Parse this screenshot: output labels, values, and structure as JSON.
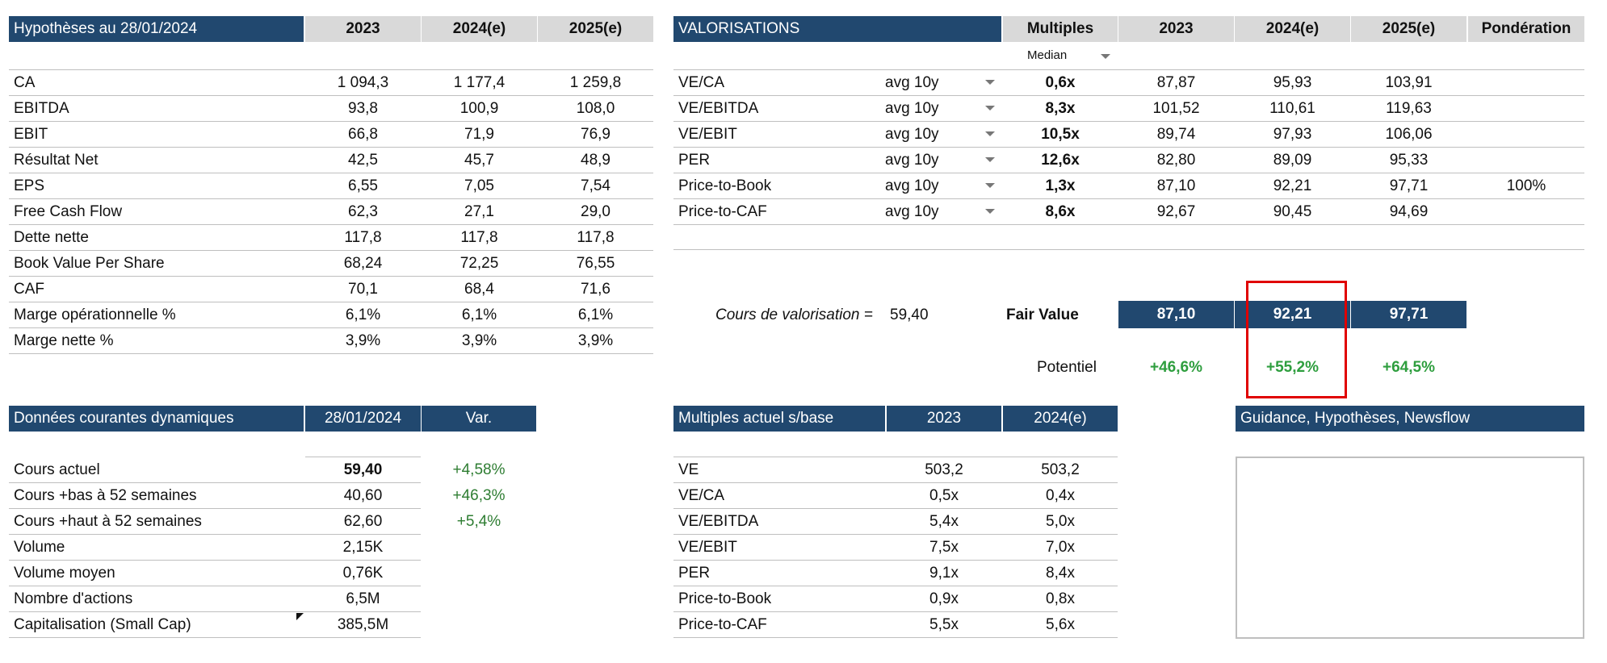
{
  "hypotheses": {
    "title": "Hypothèses au 28/01/2024",
    "columns": [
      "2023",
      "2024(e)",
      "2025(e)"
    ],
    "rows": [
      {
        "label": "CA",
        "v": [
          "1 094,3",
          "1 177,4",
          "1 259,8"
        ]
      },
      {
        "label": "EBITDA",
        "v": [
          "93,8",
          "100,9",
          "108,0"
        ]
      },
      {
        "label": "EBIT",
        "v": [
          "66,8",
          "71,9",
          "76,9"
        ]
      },
      {
        "label": "Résultat Net",
        "v": [
          "42,5",
          "45,7",
          "48,9"
        ]
      },
      {
        "label": "EPS",
        "v": [
          "6,55",
          "7,05",
          "7,54"
        ]
      },
      {
        "label": "Free Cash Flow",
        "v": [
          "62,3",
          "27,1",
          "29,0"
        ]
      },
      {
        "label": "Dette nette",
        "v": [
          "117,8",
          "117,8",
          "117,8"
        ]
      },
      {
        "label": "Book Value Per Share",
        "v": [
          "68,24",
          "72,25",
          "76,55"
        ]
      },
      {
        "label": "CAF",
        "v": [
          "70,1",
          "68,4",
          "71,6"
        ]
      },
      {
        "label": "Marge opérationnelle %",
        "v": [
          "6,1%",
          "6,1%",
          "6,1%"
        ]
      },
      {
        "label": "Marge nette %",
        "v": [
          "3,9%",
          "3,9%",
          "3,9%"
        ]
      }
    ]
  },
  "valorisations": {
    "title": "VALORISATIONS",
    "multiples_header": "Multiples",
    "median_label": "Median",
    "columns": [
      "2023",
      "2024(e)",
      "2025(e)"
    ],
    "ponderation_header": "Pondération",
    "rows": [
      {
        "label": "VE/CA",
        "period": "avg 10y",
        "multiple": "0,6x",
        "v": [
          "87,87",
          "95,93",
          "103,91"
        ],
        "ponderation": ""
      },
      {
        "label": "VE/EBITDA",
        "period": "avg 10y",
        "multiple": "8,3x",
        "v": [
          "101,52",
          "110,61",
          "119,63"
        ],
        "ponderation": ""
      },
      {
        "label": "VE/EBIT",
        "period": "avg 10y",
        "multiple": "10,5x",
        "v": [
          "89,74",
          "97,93",
          "106,06"
        ],
        "ponderation": ""
      },
      {
        "label": "PER",
        "period": "avg 10y",
        "multiple": "12,6x",
        "v": [
          "82,80",
          "89,09",
          "95,33"
        ],
        "ponderation": ""
      },
      {
        "label": "Price-to-Book",
        "period": "avg 10y",
        "multiple": "1,3x",
        "v": [
          "87,10",
          "92,21",
          "97,71"
        ],
        "ponderation": "100%"
      },
      {
        "label": "Price-to-CAF",
        "period": "avg 10y",
        "multiple": "8,6x",
        "v": [
          "92,67",
          "90,45",
          "94,69"
        ],
        "ponderation": ""
      }
    ],
    "cours_label": "Cours de valorisation =",
    "cours_value": "59,40",
    "fair_value_label": "Fair Value",
    "fair_values": [
      "87,10",
      "92,21",
      "97,71"
    ],
    "potentiel_label": "Potentiel",
    "potentiels": [
      "+46,6%",
      "+55,2%",
      "+64,5%"
    ]
  },
  "donnees": {
    "title": "Données courantes dynamiques",
    "date_header": "28/01/2024",
    "var_header": "Var.",
    "rows": [
      {
        "label": "Cours actuel",
        "value": "59,40",
        "var": "+4,58%"
      },
      {
        "label": "Cours +bas à 52 semaines",
        "value": "40,60",
        "var": "+46,3%"
      },
      {
        "label": "Cours +haut à 52 semaines",
        "value": "62,60",
        "var": "+5,4%"
      },
      {
        "label": "Volume",
        "value": "2,15K",
        "var": ""
      },
      {
        "label": "Volume moyen",
        "value": "0,76K",
        "var": ""
      },
      {
        "label": "Nombre d'actions",
        "value": "6,5M",
        "var": ""
      },
      {
        "label": "Capitalisation (Small Cap)",
        "value": "385,5M",
        "var": ""
      }
    ]
  },
  "multiples_actuels": {
    "title": "Multiples actuel s/base",
    "columns": [
      "2023",
      "2024(e)"
    ],
    "rows": [
      {
        "label": "VE",
        "v": [
          "503,2",
          "503,2"
        ]
      },
      {
        "label": "VE/CA",
        "v": [
          "0,5x",
          "0,4x"
        ]
      },
      {
        "label": "VE/EBITDA",
        "v": [
          "5,4x",
          "5,0x"
        ]
      },
      {
        "label": "VE/EBIT",
        "v": [
          "7,5x",
          "7,0x"
        ]
      },
      {
        "label": "PER",
        "v": [
          "9,1x",
          "8,4x"
        ]
      },
      {
        "label": "Price-to-Book",
        "v": [
          "0,9x",
          "0,8x"
        ]
      },
      {
        "label": "Price-to-CAF",
        "v": [
          "5,5x",
          "5,6x"
        ]
      }
    ]
  },
  "guidance": {
    "title": "Guidance, Hypothèses, Newsflow"
  },
  "colors": {
    "header_blue": "#21486f",
    "header_grey": "#d9d9d9",
    "positive_green": "#2e9e3e",
    "highlight_red": "#e00000"
  }
}
